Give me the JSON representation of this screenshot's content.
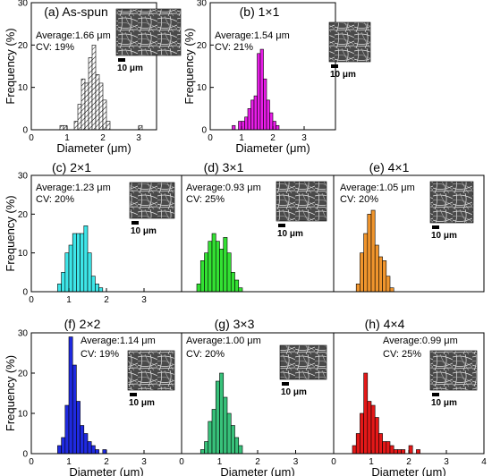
{
  "figure": {
    "hist_step": 0.1,
    "ylabel": "Frequency (%)",
    "xlabel": "Diameter (μm)",
    "scale_bar_label": "10 μm",
    "average_prefix": "Average:",
    "cv_prefix": "CV: "
  },
  "chart_data": [
    {
      "type": "bar",
      "panel_label": "(a) As-spun",
      "average": "1.66 μm",
      "cv": "19%",
      "color": "#ffffff",
      "hatched": true,
      "xlim": [
        0,
        3.5
      ],
      "ylim": [
        0,
        30
      ],
      "xticks": [
        0,
        1,
        2,
        3
      ],
      "yticks": [
        0,
        10,
        20,
        30
      ],
      "xlabel": "Diameter (μm)",
      "ylabel": "Frequency (%)",
      "bins": [
        [
          0.8,
          1
        ],
        [
          0.9,
          1
        ],
        [
          1.2,
          2
        ],
        [
          1.3,
          6
        ],
        [
          1.4,
          12
        ],
        [
          1.5,
          11
        ],
        [
          1.6,
          17
        ],
        [
          1.7,
          20
        ],
        [
          1.8,
          13
        ],
        [
          1.9,
          11
        ],
        [
          2.0,
          7
        ],
        [
          2.1,
          2
        ],
        [
          3.0,
          1
        ]
      ]
    },
    {
      "type": "bar",
      "panel_label": "(b) 1×1",
      "average": "1.54 μm",
      "cv": "21%",
      "color": "#e81de8",
      "hatched": false,
      "xlim": [
        0,
        4
      ],
      "ylim": [
        0,
        30
      ],
      "xticks": [
        0,
        1,
        2,
        3
      ],
      "yticks": [
        0,
        10,
        20,
        30
      ],
      "xlabel": "Diameter (μm)",
      "ylabel": "Frequency (%)",
      "bins": [
        [
          0.7,
          1
        ],
        [
          0.9,
          2
        ],
        [
          1.0,
          2
        ],
        [
          1.1,
          3
        ],
        [
          1.2,
          5
        ],
        [
          1.3,
          7
        ],
        [
          1.4,
          8
        ],
        [
          1.5,
          18
        ],
        [
          1.6,
          19
        ],
        [
          1.7,
          12
        ],
        [
          1.8,
          7
        ],
        [
          1.9,
          4
        ],
        [
          2.0,
          2
        ],
        [
          2.1,
          1
        ]
      ]
    },
    {
      "type": "bar",
      "panel_label": "(c) 2×1",
      "average": "1.23 μm",
      "cv": "20%",
      "color": "#3ee6e9",
      "hatched": false,
      "xlim": [
        0,
        4
      ],
      "ylim": [
        0,
        30
      ],
      "xticks": [
        0,
        1,
        2,
        3
      ],
      "yticks": [
        0,
        10,
        20,
        30
      ],
      "xlabel": "",
      "ylabel": "Frequency (%)",
      "bins": [
        [
          0.7,
          2
        ],
        [
          0.8,
          5
        ],
        [
          0.9,
          10
        ],
        [
          1.0,
          12
        ],
        [
          1.1,
          15
        ],
        [
          1.2,
          15
        ],
        [
          1.3,
          15
        ],
        [
          1.4,
          17
        ],
        [
          1.5,
          10
        ],
        [
          1.6,
          4
        ],
        [
          1.7,
          2
        ],
        [
          1.8,
          1
        ]
      ]
    },
    {
      "type": "bar",
      "panel_label": "(d) 3×1",
      "average": "0.93 μm",
      "cv": "25%",
      "color": "#33e133",
      "hatched": false,
      "xlim": [
        0,
        4
      ],
      "ylim": [
        0,
        30
      ],
      "xticks": [],
      "yticks": [],
      "xlabel": "",
      "ylabel": "",
      "bins": [
        [
          0.4,
          2
        ],
        [
          0.5,
          8
        ],
        [
          0.6,
          10
        ],
        [
          0.7,
          13
        ],
        [
          0.8,
          15
        ],
        [
          0.9,
          13
        ],
        [
          1.0,
          11
        ],
        [
          1.1,
          14
        ],
        [
          1.2,
          10
        ],
        [
          1.3,
          5
        ],
        [
          1.4,
          3
        ],
        [
          1.5,
          1
        ]
      ]
    },
    {
      "type": "bar",
      "panel_label": "(e) 4×1",
      "average": "1.05 μm",
      "cv": "20%",
      "color": "#f0952d",
      "hatched": false,
      "xlim": [
        0,
        4
      ],
      "ylim": [
        0,
        30
      ],
      "xticks": [],
      "yticks": [],
      "xlabel": "",
      "ylabel": "",
      "bins": [
        [
          0.6,
          2
        ],
        [
          0.7,
          10
        ],
        [
          0.8,
          15
        ],
        [
          0.9,
          20
        ],
        [
          1.0,
          21
        ],
        [
          1.1,
          12
        ],
        [
          1.2,
          9
        ],
        [
          1.3,
          8
        ],
        [
          1.4,
          4
        ],
        [
          1.5,
          1
        ]
      ]
    },
    {
      "type": "bar",
      "panel_label": "(f) 2×2",
      "average": "1.14 μm",
      "cv": "19%",
      "color": "#1f2ae0",
      "hatched": false,
      "xlim": [
        0,
        4
      ],
      "ylim": [
        0,
        30
      ],
      "xticks": [
        0,
        1,
        2,
        3
      ],
      "yticks": [
        0,
        10,
        20,
        30
      ],
      "xlabel": "Diameter (μm)",
      "ylabel": "Frequency (%)",
      "bins": [
        [
          0.7,
          2
        ],
        [
          0.8,
          4
        ],
        [
          0.9,
          12
        ],
        [
          1.0,
          29
        ],
        [
          1.1,
          22
        ],
        [
          1.2,
          13
        ],
        [
          1.3,
          7
        ],
        [
          1.4,
          5
        ],
        [
          1.5,
          3
        ],
        [
          1.6,
          2
        ],
        [
          1.7,
          1
        ],
        [
          1.9,
          1
        ]
      ]
    },
    {
      "type": "bar",
      "panel_label": "(g) 3×3",
      "average": "1.00 μm",
      "cv": "20%",
      "color": "#38c17a",
      "hatched": false,
      "xlim": [
        0,
        4
      ],
      "ylim": [
        0,
        30
      ],
      "xticks": [
        0,
        1,
        2,
        3
      ],
      "yticks": [],
      "xlabel": "Diameter (μm)",
      "ylabel": "",
      "bins": [
        [
          0.5,
          1
        ],
        [
          0.6,
          3
        ],
        [
          0.7,
          8
        ],
        [
          0.8,
          11
        ],
        [
          0.9,
          18
        ],
        [
          1.0,
          20
        ],
        [
          1.1,
          14
        ],
        [
          1.2,
          10
        ],
        [
          1.3,
          7
        ],
        [
          1.4,
          4
        ],
        [
          1.5,
          2
        ]
      ]
    },
    {
      "type": "bar",
      "panel_label": "(h) 4×4",
      "average": "0.99 μm",
      "cv": "25%",
      "color": "#e41818",
      "hatched": false,
      "xlim": [
        0,
        4
      ],
      "ylim": [
        0,
        30
      ],
      "xticks": [
        0,
        1,
        2,
        3,
        4
      ],
      "yticks": [],
      "xlabel": "Diameter (μm)",
      "ylabel": "",
      "bins": [
        [
          0.5,
          2
        ],
        [
          0.6,
          5
        ],
        [
          0.7,
          10
        ],
        [
          0.8,
          20
        ],
        [
          0.9,
          13
        ],
        [
          1.0,
          12
        ],
        [
          1.1,
          9
        ],
        [
          1.2,
          5
        ],
        [
          1.3,
          3
        ],
        [
          1.4,
          3
        ],
        [
          1.5,
          2
        ],
        [
          1.6,
          1
        ],
        [
          1.7,
          1
        ],
        [
          1.8,
          1
        ],
        [
          2.0,
          2
        ],
        [
          2.2,
          1
        ]
      ]
    }
  ]
}
